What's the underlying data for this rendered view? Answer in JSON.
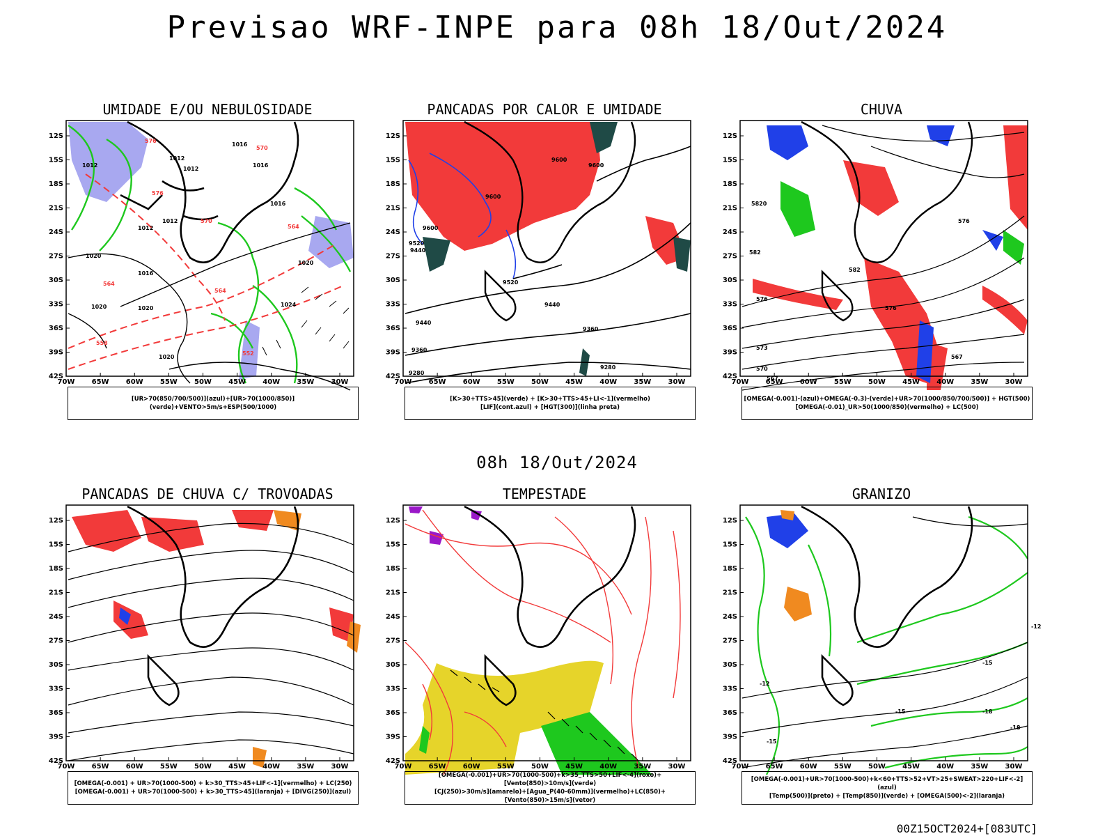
{
  "title": "Previsao WRF-INPE  para 08h 18/Out/2024",
  "mid_title": "08h 18/Out/2024",
  "footer": "00Z15OCT2024+[083UTC]",
  "axes": {
    "lat_labels": [
      "12S",
      "15S",
      "18S",
      "21S",
      "24S",
      "27S",
      "30S",
      "33S",
      "36S",
      "39S",
      "42S"
    ],
    "lon_labels": [
      "70W",
      "65W",
      "60W",
      "55W",
      "50W",
      "45W",
      "40W",
      "35W",
      "30W"
    ]
  },
  "colors": {
    "red": "#f23a3a",
    "green": "#1ec81e",
    "blue": "#2040e8",
    "lavender": "#a8a8f0",
    "darkteal": "#1f4a46",
    "orange": "#f08a20",
    "yellow": "#e6d42a",
    "purple": "#9a18c8"
  },
  "panels": [
    {
      "id": "umidade",
      "title": "UMIDADE E/OU NEBULOSIDADE",
      "legend": [
        "[UR>70(850/700/500)](azul)+[UR>70(1000/850)](verde)+VENTO>5m/s+ESP(500/1000)"
      ],
      "contour_labels": [
        "1016",
        "1012",
        "1012",
        "1012",
        "1012",
        "1016",
        "1016",
        "1012",
        "1020",
        "1016",
        "1020",
        "1020",
        "1024",
        "1020",
        "1020",
        "576",
        "564",
        "564",
        "558",
        "552",
        "570",
        "576",
        "570",
        "564"
      ]
    },
    {
      "id": "pancadas-calor",
      "title": "PANCADAS POR CALOR E UMIDADE",
      "legend": [
        "[K>30+TTS>45](verde) + [K>30+TTS>45+LI<-1](vermelho)",
        "[LIF](cont.azul) + [HGT(300)](linha preta)"
      ],
      "contour_labels": [
        "9600",
        "9600",
        "9600",
        "9600",
        "9520",
        "9440",
        "9520",
        "9440",
        "9440",
        "9360",
        "9360",
        "9280",
        "9280"
      ]
    },
    {
      "id": "chuva",
      "title": "CHUVA",
      "legend": [
        "[OMEGA(-0.001)-(azul)+OMEGA(-0.3)-(verde)+UR>70(1000/850/700/500)] + HGT(500)",
        "[OMEGA(-0.01)_UR>50(1000/850)(vermelho) + LC(500)"
      ],
      "contour_labels": [
        "5820",
        "582",
        "582",
        "576",
        "576",
        "573",
        "570",
        "567",
        "567",
        "576"
      ]
    },
    {
      "id": "pancadas-trovoadas",
      "title": "PANCADAS DE CHUVA C/ TROVOADAS",
      "legend": [
        "[OMEGA(-0.001) + UR>70(1000-500) + k>30_TTS>45+LIF<-1](vermelho) + LC(250)",
        "[OMEGA(-0.001) + UR>70(1000-500) + k>30_TTS>45](laranja) + [DIVG(250)](azul)"
      ],
      "contour_labels": []
    },
    {
      "id": "tempestade",
      "title": "TEMPESTADE",
      "legend": [
        "[OMEGA(-0.001)+UR>70(1000-500)+k>35_TTS>50+LIF<-4](roxo)+[Vento(850)>10m/s](verde)",
        "[CJ(250)>30m/s](amarelo)+[Agua_P(40-60mm)](vermelho)+LC(850)+[Vento(850)>15m/s](vetor)"
      ],
      "contour_labels": []
    },
    {
      "id": "granizo",
      "title": "GRANIZO",
      "legend": [
        "[OMEGA(-0.001)+UR>70(1000-500)+k<60+TTS>52+VT>25+SWEAT>220+LIF<-2](azul)",
        "[Temp(500)](preto) + [Temp(850)](verde) + [OMEGA(500)<-2](laranja)"
      ],
      "contour_labels": [
        "-12",
        "-15",
        "-12",
        "-15",
        "-18",
        "-15",
        "-18"
      ]
    }
  ]
}
